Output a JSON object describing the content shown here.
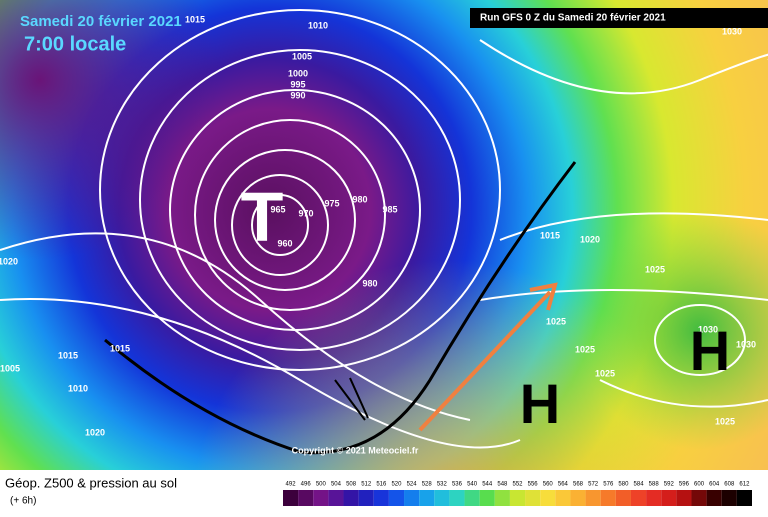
{
  "header": {
    "date": "Samedi 20 février 2021",
    "time": "7:00 locale",
    "run": "Run GFS 0 Z du Samedi 20 février 2021"
  },
  "map": {
    "systems": [
      "T",
      "H",
      "H"
    ],
    "isobar_labels": [
      "1015",
      "1010",
      "1005",
      "1000",
      "995",
      "990",
      "965",
      "970",
      "975",
      "980",
      "985",
      "960",
      "980",
      "1020",
      "1015",
      "1015",
      "1005",
      "1010",
      "1020",
      "1030",
      "1015",
      "1020",
      "1025",
      "1025",
      "1025",
      "1025",
      "1030",
      "1030",
      "1025"
    ],
    "copyright": "Copyright © 2021 Meteociel.fr"
  },
  "legend": {
    "title": "Géop. Z500 & pression au sol",
    "lead": "(+ 6h)",
    "scale": [
      492,
      496,
      500,
      504,
      508,
      512,
      516,
      520,
      524,
      528,
      532,
      536,
      540,
      544,
      548,
      552,
      556,
      560,
      564,
      568,
      572,
      576,
      580,
      584,
      588,
      592,
      596,
      600,
      604,
      608,
      612
    ]
  }
}
